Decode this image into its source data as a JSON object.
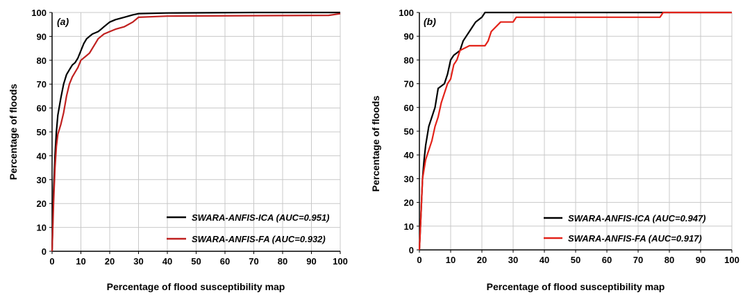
{
  "chart_data": [
    {
      "type": "line",
      "panel_label": "(a)",
      "xlabel": "Percentage of flood susceptibility map",
      "ylabel": "Percentage of floods",
      "xlim": [
        0,
        100
      ],
      "ylim": [
        0,
        100
      ],
      "xticks": [
        "0",
        "10",
        "20",
        "30",
        "40",
        "50",
        "60",
        "70",
        "80",
        "90",
        "100"
      ],
      "yticks": [
        "0",
        "10",
        "20",
        "30",
        "40",
        "50",
        "60",
        "70",
        "80",
        "90",
        "100"
      ],
      "grid": true,
      "legend_position": "bottom-right",
      "series": [
        {
          "name": "SWARA-ANFIS-ICA (AUC=0.951)",
          "color": "#000000",
          "points": [
            [
              0,
              0
            ],
            [
              0.5,
              25
            ],
            [
              1,
              40
            ],
            [
              1.5,
              50
            ],
            [
              2,
              57
            ],
            [
              3,
              64
            ],
            [
              4,
              70
            ],
            [
              5,
              74
            ],
            [
              6,
              76
            ],
            [
              7,
              78
            ],
            [
              8,
              79
            ],
            [
              9,
              81
            ],
            [
              10,
              84
            ],
            [
              11,
              87
            ],
            [
              12,
              89
            ],
            [
              13,
              90
            ],
            [
              14,
              91
            ],
            [
              16,
              92
            ],
            [
              17,
              93
            ],
            [
              18,
              94
            ],
            [
              19,
              95
            ],
            [
              20,
              96
            ],
            [
              22,
              97
            ],
            [
              25,
              98
            ],
            [
              28,
              99
            ],
            [
              30,
              99.5
            ],
            [
              40,
              99.8
            ],
            [
              70,
              100
            ],
            [
              100,
              100
            ]
          ]
        },
        {
          "name": "SWARA-ANFIS-FA (AUC=0.932)",
          "color": "#c0201f",
          "points": [
            [
              0,
              0
            ],
            [
              0.5,
              20
            ],
            [
              1,
              35
            ],
            [
              1.5,
              44
            ],
            [
              2,
              49
            ],
            [
              3,
              53
            ],
            [
              4,
              58
            ],
            [
              5,
              65
            ],
            [
              6,
              70
            ],
            [
              7,
              73
            ],
            [
              8,
              75
            ],
            [
              9,
              77
            ],
            [
              10,
              80
            ],
            [
              11,
              81
            ],
            [
              13,
              83
            ],
            [
              14,
              85
            ],
            [
              15,
              87
            ],
            [
              16,
              89
            ],
            [
              18,
              91
            ],
            [
              20,
              92
            ],
            [
              22,
              93
            ],
            [
              25,
              94
            ],
            [
              28,
              96
            ],
            [
              30,
              98
            ],
            [
              40,
              98.5
            ],
            [
              96,
              98.8
            ],
            [
              100,
              99.5
            ]
          ]
        }
      ]
    },
    {
      "type": "line",
      "panel_label": "(b)",
      "xlabel": "Percentage of flood susceptibility map",
      "ylabel": "Percentage of floods",
      "xlim": [
        0,
        100
      ],
      "ylim": [
        0,
        100
      ],
      "xticks": [
        "0",
        "10",
        "20",
        "30",
        "40",
        "50",
        "60",
        "70",
        "80",
        "90",
        "100"
      ],
      "yticks": [
        "0",
        "10",
        "20",
        "30",
        "40",
        "50",
        "60",
        "70",
        "80",
        "90",
        "100"
      ],
      "grid": true,
      "legend_position": "bottom-right",
      "series": [
        {
          "name": "SWARA-ANFIS-ICA (AUC=0.947)",
          "color": "#000000",
          "points": [
            [
              0,
              0
            ],
            [
              0.5,
              15
            ],
            [
              1,
              30
            ],
            [
              1.5,
              38
            ],
            [
              2,
              44
            ],
            [
              3,
              52
            ],
            [
              4,
              56
            ],
            [
              5,
              60
            ],
            [
              6,
              68
            ],
            [
              8,
              70
            ],
            [
              9,
              74
            ],
            [
              10,
              80
            ],
            [
              11,
              82
            ],
            [
              13,
              84
            ],
            [
              14,
              88
            ],
            [
              15,
              90
            ],
            [
              16,
              92
            ],
            [
              17,
              94
            ],
            [
              18,
              96
            ],
            [
              20,
              98
            ],
            [
              21,
              100
            ],
            [
              100,
              100
            ]
          ]
        },
        {
          "name": "SWARA-ANFIS-FA (AUC=0.917)",
          "color": "#e32219",
          "points": [
            [
              0,
              0
            ],
            [
              0.5,
              15
            ],
            [
              1,
              30
            ],
            [
              2,
              38
            ],
            [
              4,
              46
            ],
            [
              5,
              52
            ],
            [
              6,
              56
            ],
            [
              7,
              62
            ],
            [
              8,
              66
            ],
            [
              9,
              70
            ],
            [
              10,
              72
            ],
            [
              11,
              78
            ],
            [
              12,
              80
            ],
            [
              13,
              84
            ],
            [
              16,
              86
            ],
            [
              21,
              86
            ],
            [
              22,
              88
            ],
            [
              23,
              92
            ],
            [
              26,
              96
            ],
            [
              30,
              96
            ],
            [
              31,
              98
            ],
            [
              77,
              98
            ],
            [
              78,
              100
            ],
            [
              100,
              100
            ]
          ]
        }
      ]
    }
  ]
}
